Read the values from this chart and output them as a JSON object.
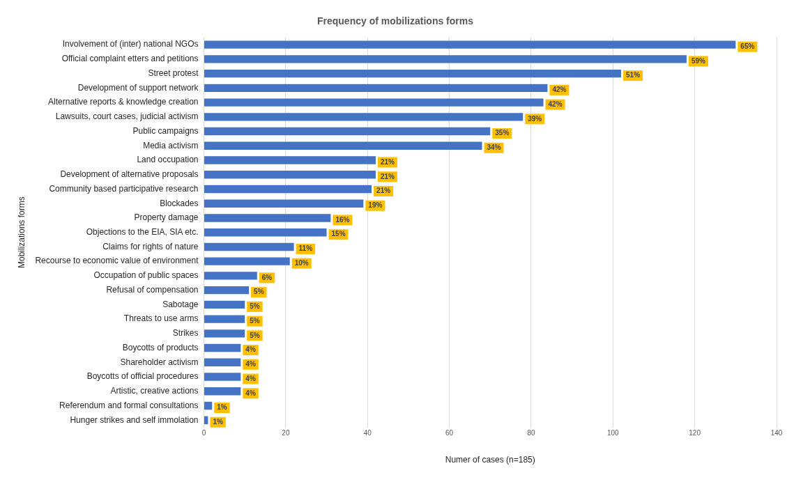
{
  "chart_data": {
    "type": "bar",
    "orientation": "horizontal",
    "title": "Frequency of mobilizations forms",
    "xlabel": "Numer of cases (n=185)",
    "ylabel": "Mobilizations forms",
    "categories": [
      "Involvement of (inter) national NGOs",
      "Official complaint etters and petitions",
      "Street protest",
      "Development of support network",
      "Alternative reports & knowledge creation",
      "Lawsuits, court cases, judicial activism",
      "Public campaigns",
      "Media activism",
      "Land occupation",
      "Development of alternative proposals",
      "Community based participative research",
      "Blockades",
      "Property damage",
      "Objections to the EIA, SIA etc.",
      "Claims for rights of nature",
      "Recourse to economic value of environment",
      "Occupation of public spaces",
      "Refusal of compensation",
      "Sabotage",
      "Threats to use arms",
      "Strikes",
      "Boycotts of products",
      "Shareholder activism",
      "Boycotts of official procedures",
      "Artistic, creative actions",
      "Referendum and formal consultations",
      "Hunger strikes and self immolation"
    ],
    "values": [
      130,
      118,
      102,
      84,
      83,
      78,
      70,
      68,
      42,
      42,
      41,
      39,
      31,
      30,
      22,
      21,
      13,
      11,
      10,
      10,
      10,
      9,
      9,
      9,
      9,
      2,
      1
    ],
    "annotations": [
      {
        "text": "65%",
        "x": 130,
        "y": "Involvement of (inter) national NGOs"
      },
      {
        "text": "59%",
        "x": 118,
        "y": "Official complaint etters and petitions"
      },
      {
        "text": "51%",
        "x": 102,
        "y": "Street protest"
      },
      {
        "text": "42%",
        "x": 84,
        "y": "Development of support network"
      },
      {
        "text": "42%",
        "x": 83,
        "y": "Alternative reports & knowledge creation"
      },
      {
        "text": "39%",
        "x": 78,
        "y": "Lawsuits, court cases, judicial activism"
      },
      {
        "text": "35%",
        "x": 70,
        "y": "Public campaigns"
      },
      {
        "text": "34%",
        "x": 68,
        "y": "Media activism"
      },
      {
        "text": "21%",
        "x": 42,
        "y": "Land occupation"
      },
      {
        "text": "21%",
        "x": 42,
        "y": "Development of alternative proposals"
      },
      {
        "text": "21%",
        "x": 41,
        "y": "Community based participative research"
      },
      {
        "text": "19%",
        "x": 39,
        "y": "Blockades"
      },
      {
        "text": "16%",
        "x": 31,
        "y": "Property damage"
      },
      {
        "text": "15%",
        "x": 30,
        "y": "Objections to the EIA, SIA etc."
      },
      {
        "text": "11%",
        "x": 22,
        "y": "Claims for rights of nature"
      },
      {
        "text": "10%",
        "x": 21,
        "y": "Recourse to economic value of environment"
      },
      {
        "text": "6%",
        "x": 13,
        "y": "Occupation of public spaces"
      },
      {
        "text": "5%",
        "x": 11,
        "y": "Refusal of compensation"
      },
      {
        "text": "5%",
        "x": 10,
        "y": "Sabotage"
      },
      {
        "text": "5%",
        "x": 10,
        "y": "Threats to use arms"
      },
      {
        "text": "5%",
        "x": 10,
        "y": "Strikes"
      },
      {
        "text": "4%",
        "x": 9,
        "y": "Boycotts of products"
      },
      {
        "text": "4%",
        "x": 9,
        "y": "Shareholder activism"
      },
      {
        "text": "4%",
        "x": 9,
        "y": "Boycotts of official procedures"
      },
      {
        "text": "4%",
        "x": 9,
        "y": "Artistic, creative actions"
      },
      {
        "text": "1%",
        "x": 2,
        "y": "Referendum and formal consultations"
      },
      {
        "text": "1%",
        "x": 1,
        "y": "Hunger strikes and self immolation"
      }
    ],
    "color": "#4472c4",
    "xlim": [
      0,
      140
    ],
    "xticks": [
      0,
      20,
      40,
      60,
      80,
      100,
      120,
      140
    ],
    "grid": "x"
  }
}
